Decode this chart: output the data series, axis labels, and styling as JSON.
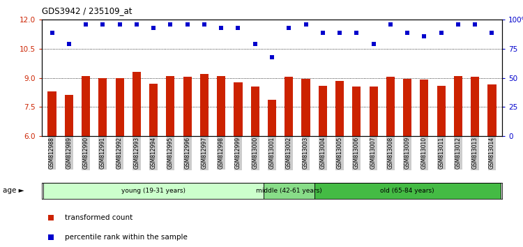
{
  "title": "GDS3942 / 235109_at",
  "samples": [
    "GSM812988",
    "GSM812989",
    "GSM812990",
    "GSM812991",
    "GSM812992",
    "GSM812993",
    "GSM812994",
    "GSM812995",
    "GSM812996",
    "GSM812997",
    "GSM812998",
    "GSM812999",
    "GSM813000",
    "GSM813001",
    "GSM813002",
    "GSM813003",
    "GSM813004",
    "GSM813005",
    "GSM813006",
    "GSM813007",
    "GSM813008",
    "GSM813009",
    "GSM813010",
    "GSM813011",
    "GSM813012",
    "GSM813013",
    "GSM813014"
  ],
  "bar_values": [
    8.3,
    8.1,
    9.1,
    9.0,
    9.0,
    9.3,
    8.7,
    9.1,
    9.05,
    9.2,
    9.1,
    8.75,
    8.55,
    7.85,
    9.05,
    8.95,
    8.6,
    8.85,
    8.55,
    8.55,
    9.05,
    8.95,
    8.9,
    8.6,
    9.1,
    9.05,
    8.65
  ],
  "percentile_values": [
    89,
    79,
    96,
    96,
    96,
    96,
    93,
    96,
    96,
    96,
    93,
    93,
    79,
    68,
    93,
    96,
    89,
    89,
    89,
    79,
    96,
    89,
    86,
    89,
    96,
    96,
    89
  ],
  "bar_color": "#cc2200",
  "percentile_color": "#0000cc",
  "ylim_left": [
    6,
    12
  ],
  "ylim_right": [
    0,
    100
  ],
  "yticks_left": [
    6,
    7.5,
    9,
    10.5,
    12
  ],
  "yticks_right": [
    0,
    25,
    50,
    75,
    100
  ],
  "ytick_labels_right": [
    "0",
    "25",
    "50",
    "75",
    "100%"
  ],
  "groups": [
    {
      "label": "young (19-31 years)",
      "start": 0,
      "end": 13,
      "color": "#ccffcc"
    },
    {
      "label": "middle (42-61 years)",
      "start": 13,
      "end": 16,
      "color": "#88dd88"
    },
    {
      "label": "old (65-84 years)",
      "start": 16,
      "end": 27,
      "color": "#44bb44"
    }
  ],
  "age_label": "age",
  "legend_bar_label": "transformed count",
  "legend_pct_label": "percentile rank within the sample",
  "background_color": "#ffffff",
  "tick_bg_color": "#cccccc"
}
